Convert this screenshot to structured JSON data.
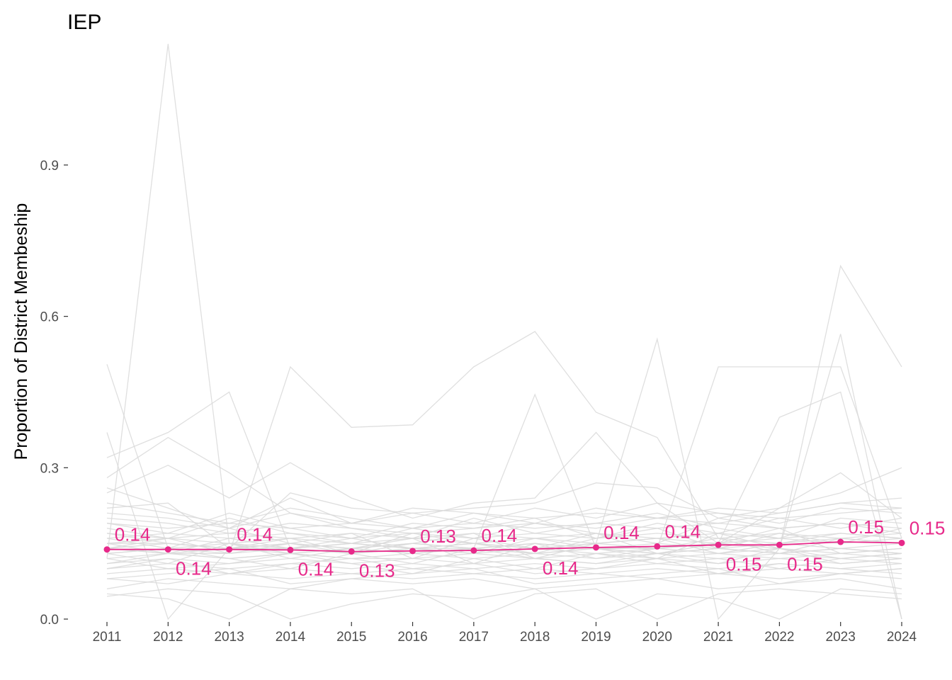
{
  "chart_data": {
    "type": "line",
    "title": "IEP",
    "xlabel": "",
    "ylabel": "Proportion of District Membeship",
    "x": [
      2011,
      2012,
      2013,
      2014,
      2015,
      2016,
      2017,
      2018,
      2019,
      2020,
      2021,
      2022,
      2023,
      2024
    ],
    "x_tick_labels": [
      "2011",
      "2012",
      "2013",
      "2014",
      "2015",
      "2016",
      "2017",
      "2018",
      "2019",
      "2020",
      "2021",
      "2022",
      "2023",
      "2024"
    ],
    "y_ticks": [
      0.0,
      0.3,
      0.6,
      0.9
    ],
    "y_tick_labels": [
      "0.0",
      "0.3",
      "0.6",
      "0.9"
    ],
    "ylim": [
      0,
      1.14
    ],
    "grid": false,
    "highlight_color": "#E7298A",
    "background_series_color": "#D9D9D9",
    "highlight": {
      "values": [
        0.138,
        0.138,
        0.138,
        0.137,
        0.134,
        0.135,
        0.136,
        0.139,
        0.142,
        0.144,
        0.147,
        0.147,
        0.153,
        0.151
      ],
      "labels": [
        "0.14",
        "0.14",
        "0.14",
        "0.14",
        "0.13",
        "0.13",
        "0.14",
        "0.14",
        "0.14",
        "0.14",
        "0.15",
        "0.15",
        "0.15",
        "0.15"
      ],
      "label_positions": [
        "above",
        "below",
        "above",
        "below",
        "below",
        "above",
        "above",
        "below",
        "above",
        "above",
        "below",
        "below",
        "above",
        "above"
      ]
    },
    "background_series": [
      [
        0.505,
        0.14,
        0.12,
        0.13,
        0.12,
        0.12,
        0.13,
        0.12,
        0.13,
        0.12,
        0.13,
        0.12,
        0.13,
        0.12
      ],
      [
        0.12,
        1.14,
        0.15,
        0.13,
        0.14,
        0.13,
        0.14,
        0.13,
        0.14,
        0.13,
        0.14,
        0.13,
        0.14,
        0.13
      ],
      [
        0.14,
        0.13,
        0.13,
        0.5,
        0.38,
        0.385,
        0.5,
        0.57,
        0.41,
        0.36,
        0.16,
        0.15,
        0.16,
        0.15
      ],
      [
        0.15,
        0.15,
        0.14,
        0.14,
        0.13,
        0.14,
        0.14,
        0.13,
        0.14,
        0.14,
        0.5,
        0.5,
        0.5,
        0.16
      ],
      [
        0.13,
        0.14,
        0.15,
        0.14,
        0.15,
        0.14,
        0.15,
        0.14,
        0.15,
        0.555,
        0.0,
        0.14,
        0.7,
        0.5
      ],
      [
        0.14,
        0.13,
        0.14,
        0.15,
        0.14,
        0.15,
        0.14,
        0.15,
        0.14,
        0.14,
        0.15,
        0.14,
        0.565,
        0.0
      ],
      [
        0.32,
        0.37,
        0.45,
        0.14,
        0.15,
        0.14,
        0.15,
        0.14,
        0.15,
        0.14,
        0.15,
        0.4,
        0.45,
        0.0
      ],
      [
        0.37,
        0.0,
        0.14,
        0.13,
        0.14,
        0.13,
        0.14,
        0.445,
        0.14,
        0.13,
        0.14,
        0.13,
        0.14,
        0.13
      ],
      [
        0.28,
        0.36,
        0.29,
        0.21,
        0.18,
        0.17,
        0.18,
        0.19,
        0.18,
        0.2,
        0.22,
        0.21,
        0.23,
        0.24
      ],
      [
        0.25,
        0.305,
        0.24,
        0.31,
        0.24,
        0.2,
        0.23,
        0.24,
        0.37,
        0.23,
        0.15,
        0.22,
        0.29,
        0.2
      ],
      [
        0.22,
        0.23,
        0.14,
        0.25,
        0.22,
        0.21,
        0.22,
        0.23,
        0.27,
        0.26,
        0.2,
        0.22,
        0.25,
        0.3
      ],
      [
        0.21,
        0.2,
        0.18,
        0.21,
        0.19,
        0.22,
        0.21,
        0.2,
        0.21,
        0.2,
        0.21,
        0.2,
        0.21,
        0.22
      ],
      [
        0.19,
        0.18,
        0.19,
        0.18,
        0.19,
        0.18,
        0.19,
        0.18,
        0.19,
        0.18,
        0.19,
        0.18,
        0.19,
        0.18
      ],
      [
        0.17,
        0.16,
        0.17,
        0.16,
        0.17,
        0.16,
        0.17,
        0.16,
        0.17,
        0.16,
        0.17,
        0.16,
        0.17,
        0.16
      ],
      [
        0.16,
        0.17,
        0.16,
        0.17,
        0.16,
        0.17,
        0.16,
        0.17,
        0.16,
        0.17,
        0.16,
        0.17,
        0.16,
        0.17
      ],
      [
        0.15,
        0.16,
        0.15,
        0.16,
        0.15,
        0.16,
        0.15,
        0.16,
        0.15,
        0.16,
        0.15,
        0.16,
        0.15,
        0.16
      ],
      [
        0.14,
        0.15,
        0.14,
        0.15,
        0.14,
        0.15,
        0.14,
        0.15,
        0.14,
        0.15,
        0.14,
        0.15,
        0.14,
        0.15
      ],
      [
        0.13,
        0.14,
        0.13,
        0.14,
        0.13,
        0.14,
        0.13,
        0.14,
        0.13,
        0.14,
        0.13,
        0.14,
        0.13,
        0.14
      ],
      [
        0.12,
        0.13,
        0.12,
        0.13,
        0.12,
        0.13,
        0.12,
        0.13,
        0.12,
        0.13,
        0.12,
        0.13,
        0.12,
        0.13
      ],
      [
        0.11,
        0.12,
        0.11,
        0.12,
        0.11,
        0.12,
        0.11,
        0.12,
        0.11,
        0.12,
        0.11,
        0.12,
        0.11,
        0.12
      ],
      [
        0.1,
        0.11,
        0.1,
        0.11,
        0.1,
        0.11,
        0.1,
        0.11,
        0.1,
        0.11,
        0.1,
        0.11,
        0.1,
        0.11
      ],
      [
        0.09,
        0.1,
        0.09,
        0.1,
        0.09,
        0.1,
        0.09,
        0.1,
        0.09,
        0.1,
        0.09,
        0.1,
        0.09,
        0.1
      ],
      [
        0.08,
        0.07,
        0.09,
        0.08,
        0.09,
        0.08,
        0.09,
        0.08,
        0.09,
        0.08,
        0.09,
        0.08,
        0.09,
        0.08
      ],
      [
        0.06,
        0.08,
        0.07,
        0.06,
        0.08,
        0.07,
        0.08,
        0.06,
        0.07,
        0.08,
        0.06,
        0.07,
        0.08,
        0.06
      ],
      [
        0.05,
        0.04,
        0.0,
        0.06,
        0.05,
        0.06,
        0.0,
        0.05,
        0.06,
        0.0,
        0.05,
        0.06,
        0.05,
        0.04
      ],
      [
        0.045,
        0.06,
        0.05,
        0.0,
        0.03,
        0.05,
        0.04,
        0.06,
        0.0,
        0.05,
        0.04,
        0.0,
        0.06,
        0.05
      ],
      [
        0.18,
        0.16,
        0.2,
        0.17,
        0.15,
        0.18,
        0.16,
        0.19,
        0.17,
        0.15,
        0.2,
        0.18,
        0.19,
        0.17
      ],
      [
        0.2,
        0.19,
        0.17,
        0.19,
        0.18,
        0.16,
        0.2,
        0.17,
        0.19,
        0.21,
        0.18,
        0.16,
        0.2,
        0.19
      ],
      [
        0.16,
        0.14,
        0.18,
        0.15,
        0.13,
        0.17,
        0.15,
        0.13,
        0.16,
        0.18,
        0.14,
        0.17,
        0.15,
        0.18
      ],
      [
        0.12,
        0.1,
        0.11,
        0.13,
        0.11,
        0.09,
        0.12,
        0.1,
        0.13,
        0.11,
        0.12,
        0.1,
        0.12,
        0.11
      ],
      [
        0.1,
        0.12,
        0.09,
        0.11,
        0.12,
        0.1,
        0.11,
        0.09,
        0.1,
        0.12,
        0.09,
        0.11,
        0.1,
        0.09
      ],
      [
        0.08,
        0.09,
        0.1,
        0.07,
        0.08,
        0.09,
        0.1,
        0.07,
        0.08,
        0.09,
        0.1,
        0.07,
        0.09,
        0.1
      ],
      [
        0.23,
        0.21,
        0.19,
        0.22,
        0.2,
        0.18,
        0.21,
        0.19,
        0.22,
        0.2,
        0.19,
        0.21,
        0.23,
        0.22
      ],
      [
        0.26,
        0.22,
        0.18,
        0.24,
        0.19,
        0.21,
        0.19,
        0.22,
        0.2,
        0.23,
        0.21,
        0.19,
        0.22,
        0.21
      ],
      [
        0.14,
        0.16,
        0.13,
        0.15,
        0.17,
        0.12,
        0.16,
        0.14,
        0.17,
        0.13,
        0.15,
        0.18,
        0.13,
        0.14
      ],
      [
        0.13,
        0.11,
        0.15,
        0.12,
        0.14,
        0.16,
        0.11,
        0.15,
        0.12,
        0.14,
        0.16,
        0.13,
        0.16,
        0.15
      ],
      [
        0.17,
        0.15,
        0.14,
        0.16,
        0.13,
        0.15,
        0.17,
        0.12,
        0.15,
        0.16,
        0.13,
        0.15,
        0.17,
        0.16
      ],
      [
        0.15,
        0.13,
        0.16,
        0.14,
        0.16,
        0.14,
        0.13,
        0.16,
        0.14,
        0.12,
        0.17,
        0.14,
        0.12,
        0.13
      ],
      [
        0.11,
        0.13,
        0.12,
        0.1,
        0.13,
        0.11,
        0.14,
        0.12,
        0.11,
        0.13,
        0.11,
        0.14,
        0.11,
        0.12
      ],
      [
        0.19,
        0.17,
        0.21,
        0.18,
        0.16,
        0.19,
        0.18,
        0.2,
        0.16,
        0.19,
        0.17,
        0.2,
        0.18,
        0.2
      ]
    ]
  }
}
